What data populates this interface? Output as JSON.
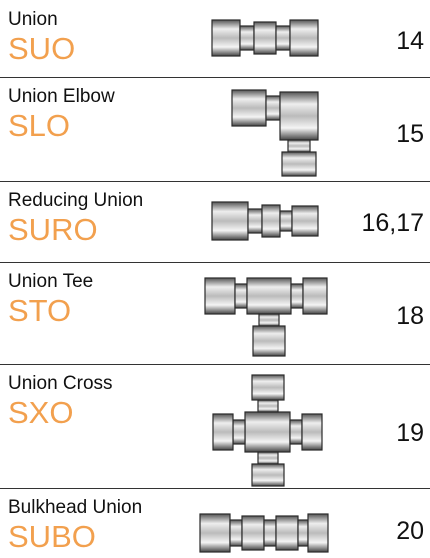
{
  "items": [
    {
      "name": "Union",
      "code": "SUO",
      "page": "14"
    },
    {
      "name": "Union Elbow",
      "code": "SLO",
      "page": "15"
    },
    {
      "name": "Reducing Union",
      "code": "SURO",
      "page": "16,17"
    },
    {
      "name": "Union Tee",
      "code": "STO",
      "page": "18"
    },
    {
      "name": "Union Cross",
      "code": "SXO",
      "page": "19"
    },
    {
      "name": "Bulkhead Union",
      "code": "SUBO",
      "page": "20"
    }
  ]
}
